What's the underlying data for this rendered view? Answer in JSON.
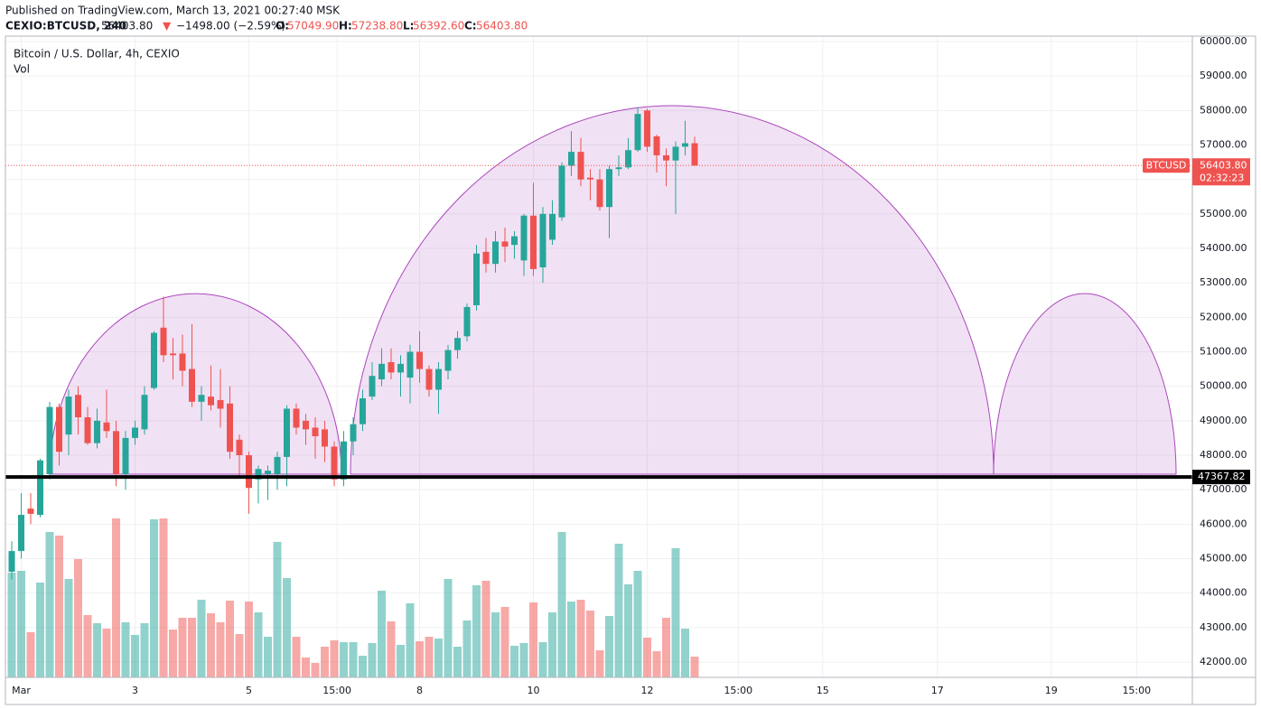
{
  "chart_data": {
    "type": "candlestick",
    "published": "Published on TradingView.com, March 13, 2021 00:27:40 MSK",
    "symbol": "CEXIO:BTCUSD, 240",
    "last": "56403.80",
    "change_arrow": "▼",
    "change": "−1498.00 (−2.59%)",
    "ohlc": [
      {
        "label": "O:",
        "value": "57049.90"
      },
      {
        "label": "H:",
        "value": "57238.80"
      },
      {
        "label": "L:",
        "value": "56392.60"
      },
      {
        "label": "C:",
        "value": "56403.80"
      }
    ],
    "title": "Bitcoin / U.S. Dollar, 4h, CEXIO",
    "volume_label": "Vol",
    "up_color": "#26a69a",
    "down_color": "#ef5350",
    "shape_color": "#ab47bc",
    "open": [
      44620,
      45220,
      46450,
      46270,
      47450,
      49400,
      48600,
      49750,
      49100,
      48350,
      48950,
      48700,
      47450,
      48500,
      48750,
      49950,
      51700,
      50950,
      50950,
      50500,
      49550,
      49700,
      49600,
      49500,
      48450,
      48000,
      47300,
      47450,
      47450,
      47950,
      49350,
      49000,
      48800,
      48750,
      48250,
      47300,
      48400,
      48900,
      49700,
      50200,
      50700,
      50400,
      50250,
      51000,
      50500,
      49900,
      50450,
      51050,
      51450,
      52350,
      53900,
      53550,
      54200,
      54100,
      53650,
      54950,
      53450,
      54250,
      54900,
      56400,
      56800,
      56050,
      56000,
      55200,
      56300,
      56350,
      56850,
      58000,
      57250,
      56700,
      56550,
      56950,
      57049.9
    ],
    "high": [
      45500,
      46900,
      46900,
      47900,
      49550,
      49500,
      49900,
      50000,
      49400,
      49350,
      49900,
      49000,
      48700,
      49000,
      50000,
      51600,
      52600,
      51400,
      51500,
      51800,
      50000,
      50600,
      50500,
      50000,
      48600,
      48100,
      47700,
      47700,
      48100,
      49450,
      49500,
      49200,
      49100,
      49000,
      48400,
      48700,
      49100,
      49900,
      50700,
      51100,
      51100,
      50900,
      51200,
      51600,
      50600,
      50700,
      51200,
      51600,
      52400,
      54100,
      54300,
      54500,
      54600,
      54500,
      55000,
      55900,
      55200,
      55400,
      56500,
      57400,
      57200,
      56300,
      56300,
      56400,
      56700,
      57200,
      58100,
      58050,
      57300,
      56900,
      57100,
      57700,
      57238.8
    ],
    "low": [
      44400,
      45000,
      46000,
      46200,
      47300,
      47700,
      48000,
      48600,
      48300,
      48200,
      48500,
      47100,
      47000,
      48300,
      48600,
      49900,
      50700,
      50200,
      50000,
      49400,
      49000,
      49300,
      48800,
      47900,
      47400,
      46300,
      46600,
      46700,
      47000,
      47100,
      48600,
      48300,
      47900,
      47800,
      47100,
      47100,
      48000,
      48700,
      49600,
      50000,
      50200,
      49700,
      49500,
      50100,
      49700,
      49200,
      50200,
      50800,
      51300,
      52200,
      53300,
      53300,
      53600,
      53700,
      53200,
      53200,
      53000,
      54100,
      54800,
      56100,
      55800,
      55400,
      55100,
      54300,
      56100,
      56300,
      56800,
      56800,
      56200,
      55800,
      55000,
      56700,
      56392.6
    ],
    "close": [
      45220,
      46270,
      46300,
      47850,
      49400,
      48100,
      49700,
      49100,
      48350,
      49000,
      48700,
      47450,
      48500,
      48800,
      49750,
      51550,
      50900,
      50900,
      50450,
      49550,
      49750,
      49450,
      49350,
      48100,
      48000,
      47050,
      47600,
      47550,
      47950,
      49350,
      48800,
      48750,
      48550,
      48250,
      47300,
      48400,
      48900,
      49650,
      50300,
      50650,
      50400,
      50650,
      51000,
      50500,
      49900,
      50500,
      51050,
      51400,
      52300,
      53850,
      53550,
      54200,
      54050,
      54350,
      54950,
      53400,
      55000,
      55000,
      56400,
      56800,
      56000,
      56000,
      55200,
      56300,
      56350,
      56850,
      57900,
      56950,
      56700,
      56550,
      56950,
      57050,
      56403.8
    ],
    "volume": [
      116,
      118,
      50,
      105,
      161,
      157,
      109,
      131,
      69,
      60,
      54,
      176,
      61,
      47,
      60,
      175,
      176,
      53,
      66,
      66,
      86,
      71,
      61,
      85,
      48,
      84,
      72,
      45,
      150,
      110,
      45,
      22,
      16,
      34,
      41,
      39,
      39,
      24,
      38,
      96,
      62,
      36,
      82,
      40,
      45,
      43,
      109,
      34,
      63,
      102,
      107,
      72,
      78,
      35,
      38,
      83,
      39,
      72,
      161,
      84,
      86,
      74,
      30,
      68,
      148,
      103,
      118,
      44,
      29,
      66,
      143,
      54,
      23
    ],
    "ylim": [
      42000,
      60000
    ],
    "yticks": [
      {
        "value": 42000,
        "label": "42000.00"
      },
      {
        "value": 43000,
        "label": "43000.00"
      },
      {
        "value": 44000,
        "label": "44000.00"
      },
      {
        "value": 45000,
        "label": "45000.00"
      },
      {
        "value": 46000,
        "label": "46000.00"
      },
      {
        "value": 47000,
        "label": "47000.00"
      },
      {
        "value": 48000,
        "label": "48000.00"
      },
      {
        "value": 49000,
        "label": "49000.00"
      },
      {
        "value": 50000,
        "label": "50000.00"
      },
      {
        "value": 51000,
        "label": "51000.00"
      },
      {
        "value": 52000,
        "label": "52000.00"
      },
      {
        "value": 53000,
        "label": "53000.00"
      },
      {
        "value": 54000,
        "label": "54000.00"
      },
      {
        "value": 55000,
        "label": "55000.00"
      },
      {
        "value": 56000,
        "label": "56000.00"
      },
      {
        "value": 57000,
        "label": "57000.00"
      },
      {
        "value": 58000,
        "label": "58000.00"
      },
      {
        "value": 59000,
        "label": "59000.00"
      },
      {
        "value": 60000,
        "label": "60000.00"
      }
    ],
    "xticks": [
      {
        "value": 1,
        "label": "Mar"
      },
      {
        "value": 13,
        "label": "3"
      },
      {
        "value": 25,
        "label": "5"
      },
      {
        "value": 34.3,
        "label": "15:00"
      },
      {
        "value": 43,
        "label": "8"
      },
      {
        "value": 55,
        "label": "10"
      },
      {
        "value": 67,
        "label": "12"
      },
      {
        "value": 76.6,
        "label": "15:00"
      },
      {
        "value": 85.5,
        "label": "15"
      },
      {
        "value": 97.6,
        "label": "17"
      },
      {
        "value": 109.6,
        "label": "19"
      },
      {
        "value": 118.6,
        "label": "15:00"
      }
    ],
    "hline": 47367.82,
    "last_price": {
      "value": 56403.8,
      "label": "56403.80",
      "symbol": "BTCUSD",
      "countdown": "02:32:23"
    }
  }
}
